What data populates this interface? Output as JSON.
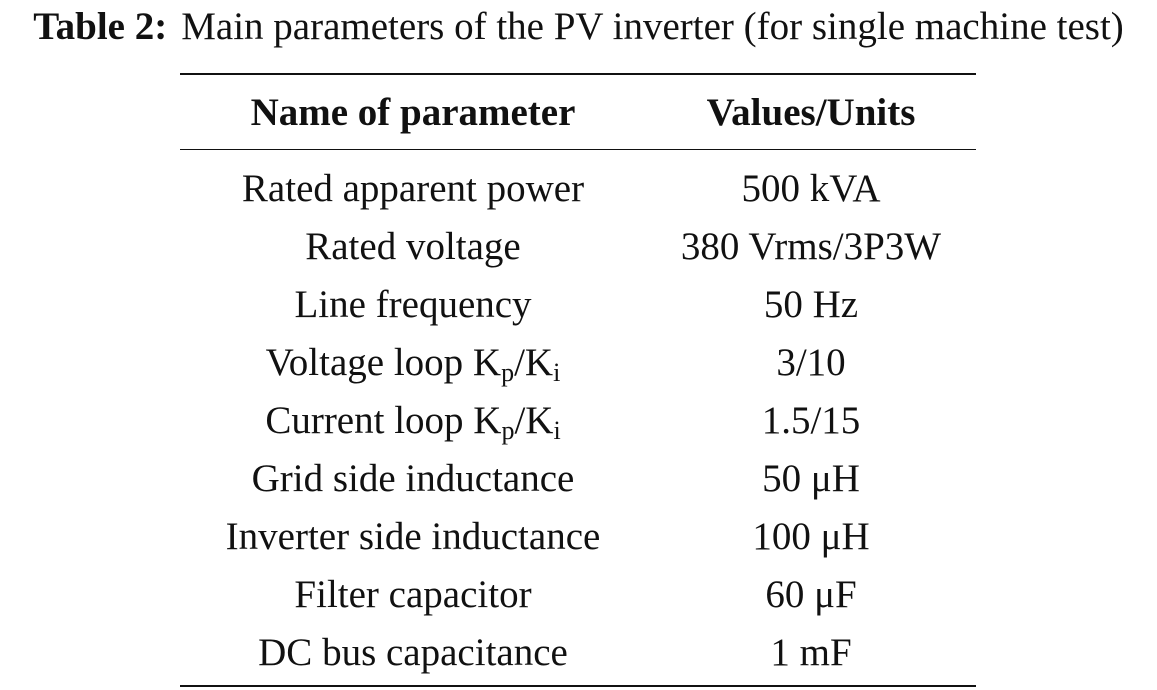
{
  "caption": {
    "label": "Table 2:",
    "text": "Main parameters of the PV inverter (for single machine test)"
  },
  "table": {
    "headers": [
      "Name of parameter",
      "Values/Units"
    ],
    "rows": [
      {
        "name": "Rated apparent power",
        "value": "500 kVA"
      },
      {
        "name": "Rated voltage",
        "value": "380 Vrms/3P3W"
      },
      {
        "name": "Line frequency",
        "value": "50 Hz"
      },
      {
        "name_prefix": "Voltage loop K",
        "sub1": "p",
        "mid": "/K",
        "sub2": "i",
        "value": "3/10"
      },
      {
        "name_prefix": "Current loop K",
        "sub1": "p",
        "mid": "/K",
        "sub2": "i",
        "value": "1.5/15"
      },
      {
        "name": "Grid side inductance",
        "value": "50 μH"
      },
      {
        "name": "Inverter side inductance",
        "value": "100 μH"
      },
      {
        "name": "Filter capacitor",
        "value": "60 μF"
      },
      {
        "name": "DC bus capacitance",
        "value": "1 mF"
      }
    ]
  }
}
